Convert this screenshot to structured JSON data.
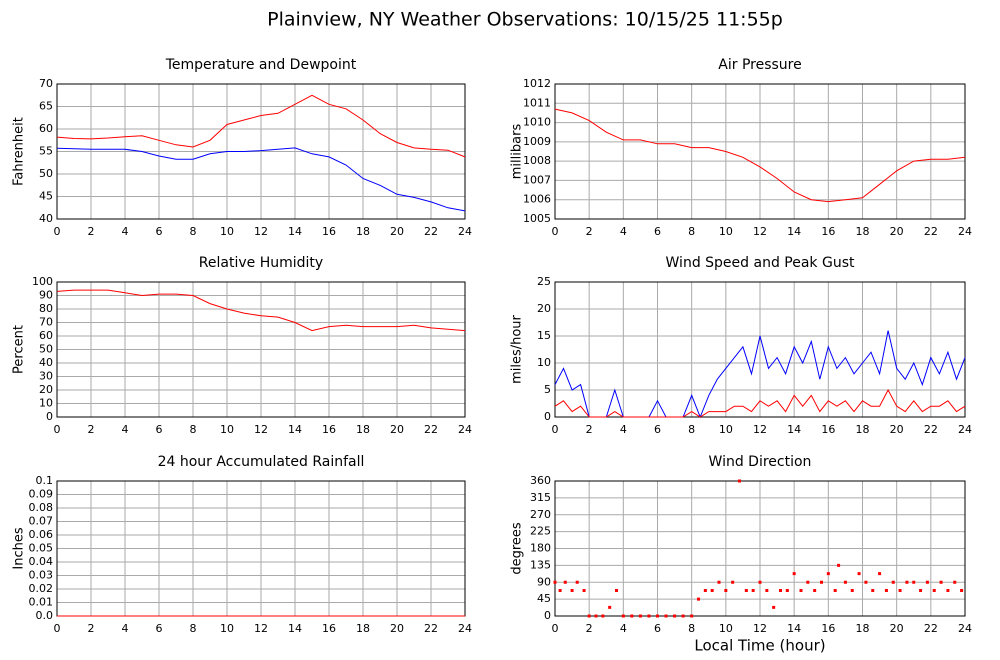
{
  "title": "Plainview, NY Weather Observations: 10/15/25 11:55p",
  "xlabel": "Local Time (hour)",
  "chart_data": [
    {
      "type": "line",
      "title": "Temperature and Dewpoint",
      "ylabel": "Fahrenheit",
      "x": [
        0,
        1,
        2,
        3,
        4,
        5,
        6,
        7,
        8,
        9,
        10,
        11,
        12,
        13,
        14,
        15,
        16,
        17,
        18,
        19,
        20,
        21,
        22,
        23,
        24
      ],
      "series": [
        {
          "color": "#ff0000",
          "values": [
            58.2,
            57.9,
            57.8,
            58,
            58.3,
            58.5,
            57.5,
            56.5,
            56,
            57.5,
            61,
            62,
            63,
            63.5,
            65.5,
            67.5,
            65.5,
            64.5,
            62,
            59,
            57,
            55.8,
            55.5,
            55.3,
            53.8
          ]
        },
        {
          "color": "#0000ff",
          "values": [
            55.7,
            55.6,
            55.5,
            55.5,
            55.5,
            55,
            54,
            53.3,
            53.3,
            54.5,
            55,
            55,
            55.2,
            55.5,
            55.8,
            54.5,
            53.8,
            52,
            49,
            47.5,
            45.5,
            44.8,
            43.8,
            42.5,
            41.8
          ]
        }
      ],
      "xlim": [
        0,
        24
      ],
      "xticks": [
        0,
        2,
        4,
        6,
        8,
        10,
        12,
        14,
        16,
        18,
        20,
        22,
        24
      ],
      "ylim": [
        40,
        70
      ],
      "yticks": [
        40,
        45,
        50,
        55,
        60,
        65,
        70
      ],
      "grid": true
    },
    {
      "type": "line",
      "title": "Air Pressure",
      "ylabel": "millibars",
      "x": [
        0,
        1,
        2,
        3,
        4,
        5,
        6,
        7,
        8,
        9,
        10,
        11,
        12,
        13,
        14,
        15,
        16,
        17,
        18,
        19,
        20,
        21,
        22,
        23,
        24
      ],
      "series": [
        {
          "color": "#ff0000",
          "values": [
            1010.7,
            1010.5,
            1010.1,
            1009.5,
            1009.1,
            1009.1,
            1008.9,
            1008.9,
            1008.7,
            1008.7,
            1008.5,
            1008.2,
            1007.7,
            1007.1,
            1006.4,
            1006,
            1005.9,
            1006,
            1006.1,
            1006.8,
            1007.5,
            1008,
            1008.1,
            1008.1,
            1008.2
          ]
        }
      ],
      "xlim": [
        0,
        24
      ],
      "xticks": [
        0,
        2,
        4,
        6,
        8,
        10,
        12,
        14,
        16,
        18,
        20,
        22,
        24
      ],
      "ylim": [
        1005,
        1012
      ],
      "yticks": [
        1005,
        1006,
        1007,
        1008,
        1009,
        1010,
        1011,
        1012
      ],
      "grid": true
    },
    {
      "type": "line",
      "title": "Relative Humidity",
      "ylabel": "Percent",
      "x": [
        0,
        1,
        2,
        3,
        4,
        5,
        6,
        7,
        8,
        9,
        10,
        11,
        12,
        13,
        14,
        15,
        16,
        17,
        18,
        19,
        20,
        21,
        22,
        23,
        24
      ],
      "series": [
        {
          "color": "#ff0000",
          "values": [
            93,
            94,
            94,
            94,
            92,
            90,
            91,
            91,
            90,
            84,
            80,
            77,
            75,
            74,
            70,
            64,
            67,
            68,
            67,
            67,
            67,
            68,
            66,
            65,
            64
          ]
        }
      ],
      "xlim": [
        0,
        24
      ],
      "xticks": [
        0,
        2,
        4,
        6,
        8,
        10,
        12,
        14,
        16,
        18,
        20,
        22,
        24
      ],
      "ylim": [
        0,
        100
      ],
      "yticks": [
        0,
        10,
        20,
        30,
        40,
        50,
        60,
        70,
        80,
        90,
        100
      ],
      "grid": true
    },
    {
      "type": "line",
      "title": "Wind Speed and Peak Gust",
      "ylabel": "miles/hour",
      "x": [
        0,
        0.5,
        1,
        1.5,
        2,
        2.5,
        3,
        3.5,
        4,
        4.5,
        5,
        5.5,
        6,
        6.5,
        7,
        7.5,
        8,
        8.5,
        9,
        9.5,
        10,
        10.5,
        11,
        11.5,
        12,
        12.5,
        13,
        13.5,
        14,
        14.5,
        15,
        15.5,
        16,
        16.5,
        17,
        17.5,
        18,
        18.5,
        19,
        19.5,
        20,
        20.5,
        21,
        21.5,
        22,
        22.5,
        23,
        23.5,
        24
      ],
      "series": [
        {
          "color": "#0000ff",
          "values": [
            6,
            9,
            5,
            6,
            0,
            0,
            0,
            5,
            0,
            0,
            0,
            0,
            3,
            0,
            0,
            0,
            4,
            0,
            4,
            7,
            9,
            11,
            13,
            8,
            15,
            9,
            11,
            8,
            13,
            10,
            14,
            7,
            13,
            9,
            11,
            8,
            10,
            12,
            8,
            16,
            9,
            7,
            10,
            6,
            11,
            8,
            12,
            7,
            11
          ]
        },
        {
          "color": "#ff0000",
          "values": [
            2,
            3,
            1,
            2,
            0,
            0,
            0,
            1,
            0,
            0,
            0,
            0,
            0,
            0,
            0,
            0,
            1,
            0,
            1,
            1,
            1,
            2,
            2,
            1,
            3,
            2,
            3,
            1,
            4,
            2,
            4,
            1,
            3,
            2,
            3,
            1,
            3,
            2,
            2,
            5,
            2,
            1,
            3,
            1,
            2,
            2,
            3,
            1,
            2
          ]
        }
      ],
      "xlim": [
        0,
        24
      ],
      "xticks": [
        0,
        2,
        4,
        6,
        8,
        10,
        12,
        14,
        16,
        18,
        20,
        22,
        24
      ],
      "ylim": [
        0,
        25
      ],
      "yticks": [
        0,
        5,
        10,
        15,
        20,
        25
      ],
      "grid": true
    },
    {
      "type": "line",
      "title": "24 hour Accumulated Rainfall",
      "ylabel": "Inches",
      "x": [
        0,
        2,
        4,
        6,
        8,
        10,
        12,
        14,
        16,
        18,
        20,
        22,
        24
      ],
      "series": [
        {
          "color": "#ff0000",
          "values": [
            0,
            0,
            0,
            0,
            0,
            0,
            0,
            0,
            0,
            0,
            0,
            0,
            0
          ]
        }
      ],
      "xlim": [
        0,
        24
      ],
      "xticks": [
        0,
        2,
        4,
        6,
        8,
        10,
        12,
        14,
        16,
        18,
        20,
        22,
        24
      ],
      "ylim": [
        0,
        0.1
      ],
      "yticks": [
        {
          "value": 0,
          "label": "0.0"
        },
        0.01,
        0.02,
        0.03,
        0.04,
        0.05,
        0.06,
        0.07,
        0.08,
        0.09,
        0.1
      ],
      "grid": true
    },
    {
      "type": "scatter",
      "title": "Wind Direction",
      "ylabel": "degrees",
      "x": [
        0,
        0.3,
        0.6,
        1,
        1.3,
        1.7,
        2,
        2.4,
        2.8,
        3.2,
        3.6,
        4,
        4.5,
        5,
        5.5,
        6,
        6.5,
        7,
        7.5,
        8,
        8.4,
        8.8,
        9.2,
        9.6,
        10,
        10.4,
        10.8,
        11.2,
        11.6,
        12,
        12.4,
        12.8,
        13.2,
        13.6,
        14,
        14.4,
        14.8,
        15.2,
        15.6,
        16,
        16.4,
        16.6,
        17,
        17.4,
        17.8,
        18.2,
        18.6,
        19,
        19.4,
        19.8,
        20.2,
        20.6,
        21,
        21.4,
        21.8,
        22.2,
        22.6,
        23,
        23.4,
        23.8
      ],
      "series": [
        {
          "color": "#ff0000",
          "values": [
            90,
            68,
            90,
            68,
            90,
            68,
            0,
            0,
            0,
            23,
            68,
            0,
            0,
            0,
            0,
            0,
            0,
            0,
            0,
            0,
            45,
            68,
            68,
            90,
            68,
            90,
            360,
            68,
            68,
            90,
            68,
            23,
            68,
            68,
            113,
            68,
            90,
            68,
            90,
            113,
            68,
            135,
            90,
            68,
            113,
            90,
            68,
            113,
            68,
            90,
            68,
            90,
            90,
            68,
            90,
            68,
            90,
            68,
            90,
            68
          ]
        }
      ],
      "xlim": [
        0,
        24
      ],
      "xticks": [
        0,
        2,
        4,
        6,
        8,
        10,
        12,
        14,
        16,
        18,
        20,
        22,
        24
      ],
      "ylim": [
        0,
        360
      ],
      "yticks": [
        0,
        45,
        90,
        135,
        180,
        225,
        270,
        315,
        360
      ],
      "grid": true
    }
  ]
}
